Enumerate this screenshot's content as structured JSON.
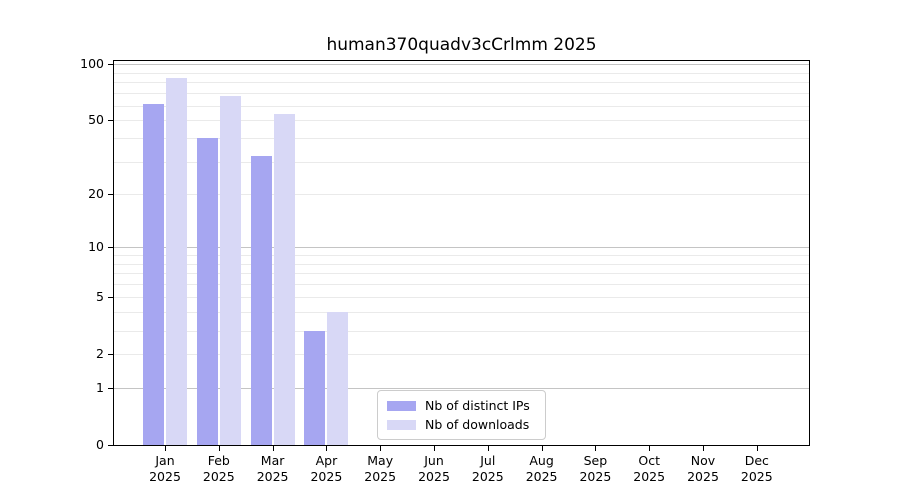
{
  "chart_data": {
    "type": "bar",
    "title": "human370quadv3cCrlmm 2025",
    "year": "2025",
    "categories": [
      "Jan",
      "Feb",
      "Mar",
      "Apr",
      "May",
      "Jun",
      "Jul",
      "Aug",
      "Sep",
      "Oct",
      "Nov",
      "Dec"
    ],
    "series": [
      {
        "name": "Nb of distinct IPs",
        "color": "#a6a6f1",
        "values": [
          61,
          40,
          32,
          3,
          0,
          0,
          0,
          0,
          0,
          0,
          0,
          0
        ]
      },
      {
        "name": "Nb of downloads",
        "color": "#d8d8f6",
        "values": [
          84,
          68,
          54,
          4,
          0,
          0,
          0,
          0,
          0,
          0,
          0,
          0
        ]
      }
    ],
    "yscale": "log1p",
    "ylim": [
      0,
      100
    ],
    "yticks": [
      0,
      1,
      2,
      5,
      10,
      20,
      50,
      100
    ],
    "major_gridlines": [
      1,
      10,
      100
    ],
    "minor_gridlines": [
      2,
      3,
      4,
      5,
      6,
      7,
      8,
      9,
      20,
      30,
      40,
      50,
      60,
      70,
      80,
      90
    ],
    "grid": true,
    "legend_position": "lower center",
    "xlabel": "",
    "ylabel": ""
  },
  "legend": {
    "items": [
      {
        "label": "Nb of distinct IPs",
        "color": "#a6a6f1"
      },
      {
        "label": "Nb of downloads",
        "color": "#d8d8f6"
      }
    ]
  },
  "colors": {
    "frame": "#000000",
    "major_grid": "#c4c4c4",
    "minor_grid": "#eaeaea",
    "background": "#ffffff"
  }
}
